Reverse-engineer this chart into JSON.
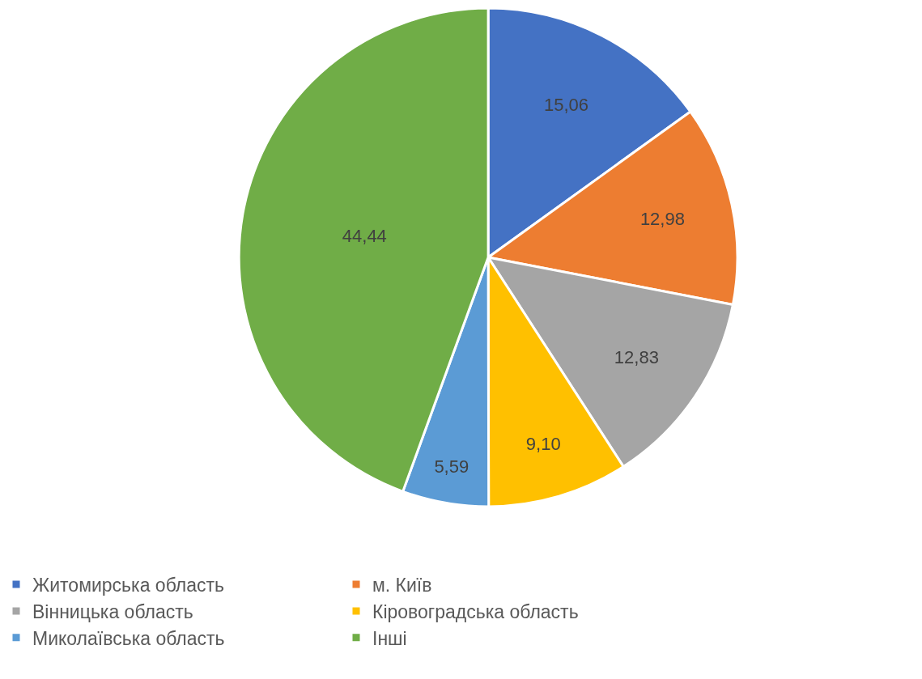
{
  "chart_data": {
    "type": "pie",
    "categories": [
      "Житомирська область",
      "м. Київ",
      "Вінницька область",
      "Кіровоградська область",
      "Миколаївська область",
      "Інші"
    ],
    "values": [
      15.06,
      12.98,
      12.83,
      9.1,
      5.59,
      44.44
    ],
    "value_labels": [
      "15,06",
      "12,98",
      "12,83",
      "9,10",
      "5,59",
      "44,44"
    ],
    "colors": [
      "#4472c4",
      "#ed7d31",
      "#a5a5a5",
      "#ffc000",
      "#5b9bd5",
      "#70ad47"
    ],
    "legend": "bottom"
  }
}
